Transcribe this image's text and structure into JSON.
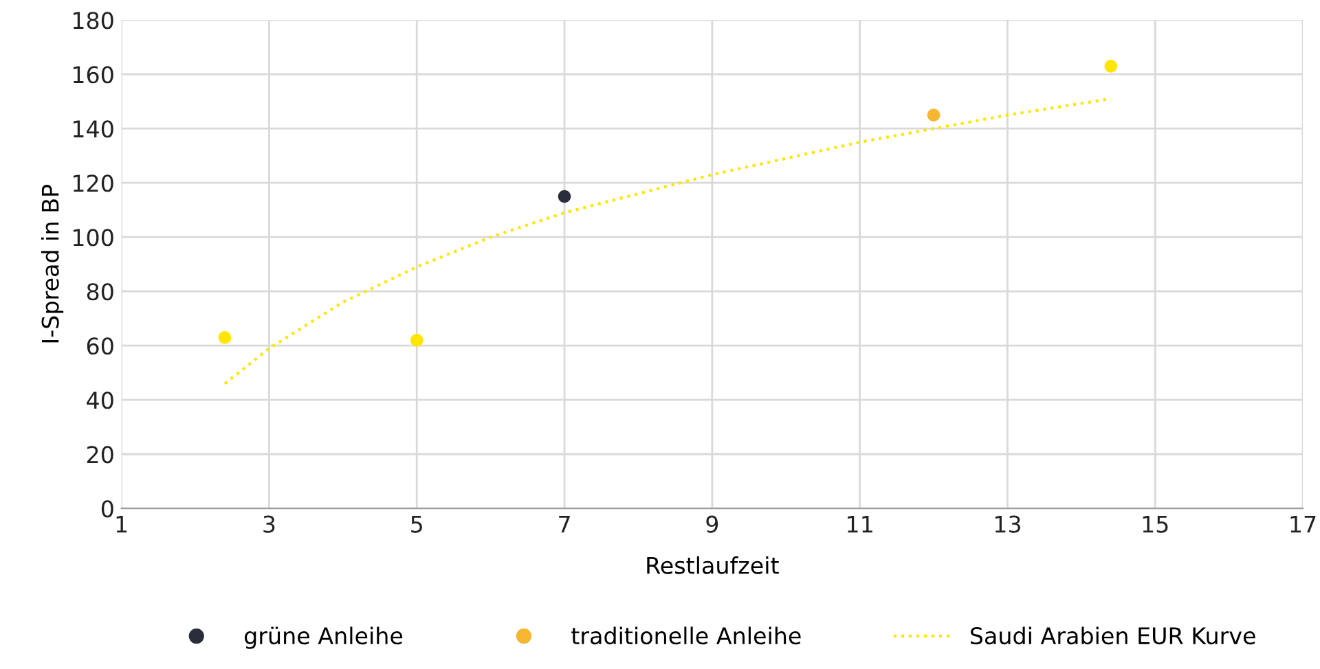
{
  "chart_data": {
    "type": "scatter",
    "xlabel": "Restlaufzeit",
    "ylabel": "I-Spread in BP",
    "xlim": [
      1,
      17
    ],
    "xticks": [
      1,
      3,
      5,
      7,
      9,
      11,
      13,
      15,
      17
    ],
    "ylim": [
      0,
      180
    ],
    "yticks": [
      0,
      20,
      40,
      60,
      80,
      100,
      120,
      140,
      160,
      180
    ],
    "grid": true,
    "legend": "bottom",
    "marker": "circle",
    "series": [
      {
        "name": "grüne Anleihe",
        "color": "#2b2d3a",
        "x": [
          7
        ],
        "values": [
          115
        ]
      },
      {
        "name": "traditionelle Anleihe",
        "color": "#f5b731",
        "x": [
          12
        ],
        "values": [
          145
        ]
      },
      {
        "color": "#ffe600",
        "x": [
          2.4,
          5,
          14.4
        ],
        "values": [
          63,
          62,
          163
        ]
      },
      {
        "name": "Saudi Arabien EUR Kurve",
        "type": "line",
        "marker": "none",
        "line_style": "dotted",
        "color": "#ffe600",
        "x": [
          2.4,
          3,
          4,
          5,
          6,
          7,
          8,
          9,
          10,
          11,
          12,
          13,
          14.4
        ],
        "values": [
          46,
          59,
          76,
          89,
          100,
          109,
          116,
          123,
          129,
          135,
          140,
          145,
          151
        ]
      }
    ]
  }
}
